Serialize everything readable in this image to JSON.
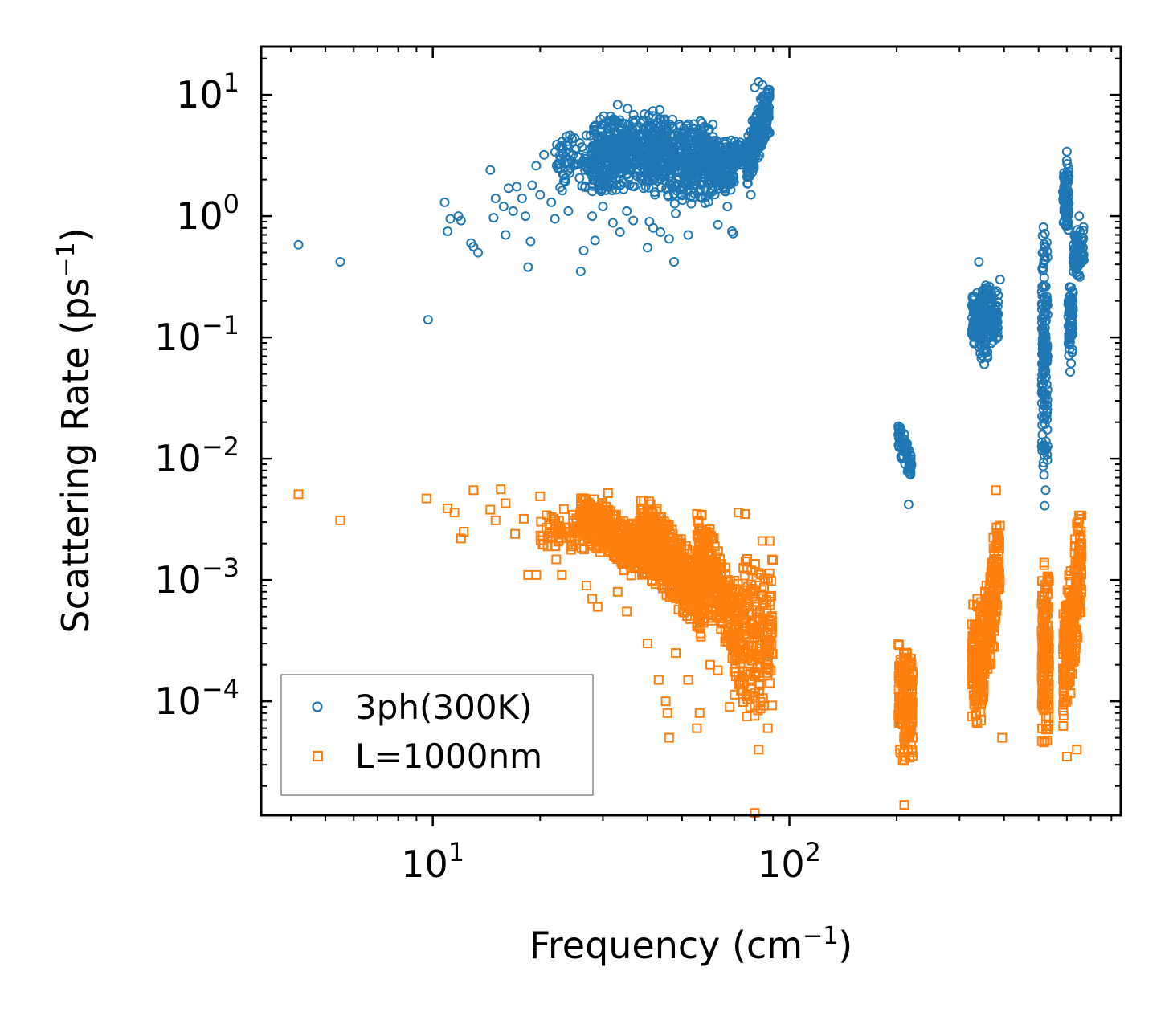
{
  "chart_data": {
    "type": "scatter",
    "xscale": "log",
    "yscale": "log",
    "xlim": [
      3.3,
      850
    ],
    "ylim": [
      1.15e-05,
      25
    ],
    "xlabel": {
      "main": "Frequency (cm",
      "sup": "−1",
      "close": ")"
    },
    "ylabel": {
      "main": "Scattering Rate (ps",
      "sup": "−1",
      "close": ")"
    },
    "x_ticks": [
      {
        "value": 10,
        "base": "10",
        "exp": "1"
      },
      {
        "value": 100,
        "base": "10",
        "exp": "2"
      }
    ],
    "y_ticks": [
      {
        "value": 10,
        "base": "10",
        "exp": "1"
      },
      {
        "value": 1,
        "base": "10",
        "exp": "0"
      },
      {
        "value": 0.1,
        "base": "10",
        "exp": "−1"
      },
      {
        "value": 0.01,
        "base": "10",
        "exp": "−2"
      },
      {
        "value": 0.001,
        "base": "10",
        "exp": "−3"
      },
      {
        "value": 0.0001,
        "base": "10",
        "exp": "−4"
      }
    ],
    "legend": {
      "position": "lower-left"
    },
    "series": [
      {
        "name": "3ph(300K)",
        "marker": "circle",
        "color": "#1f77b4",
        "points": [
          [
            4.2,
            0.58
          ],
          [
            5.5,
            0.42
          ],
          [
            9.7,
            0.14
          ],
          [
            10.8,
            1.3
          ],
          [
            11.0,
            0.75
          ],
          [
            11.2,
            0.95
          ],
          [
            11.8,
            1.0
          ],
          [
            12.0,
            0.92
          ],
          [
            12.8,
            0.6
          ],
          [
            13.0,
            0.56
          ],
          [
            13.4,
            0.5
          ],
          [
            14.5,
            2.4
          ],
          [
            14.8,
            0.97
          ],
          [
            15.0,
            1.4
          ],
          [
            15.8,
            1.2
          ],
          [
            16.0,
            0.7
          ],
          [
            16.3,
            1.7
          ],
          [
            16.8,
            1.1
          ],
          [
            17.2,
            1.75
          ],
          [
            17.8,
            1.4
          ],
          [
            18.2,
            1.0
          ],
          [
            18.5,
            0.38
          ],
          [
            18.8,
            0.62
          ],
          [
            19.0,
            1.8
          ],
          [
            19.5,
            2.6
          ],
          [
            20.0,
            1.5
          ],
          [
            20.5,
            3.2
          ],
          [
            21.5,
            1.3
          ],
          [
            22.0,
            0.95
          ],
          [
            23.0,
            3.8
          ],
          [
            24.0,
            1.1
          ],
          [
            25.0,
            4.4
          ],
          [
            26.0,
            0.35
          ],
          [
            26.5,
            0.52
          ],
          [
            27.0,
            2.5
          ],
          [
            28.0,
            1.0
          ],
          [
            28.5,
            0.63
          ],
          [
            30.0,
            1.2
          ],
          [
            31.0,
            2.2
          ],
          [
            32.0,
            0.88
          ],
          [
            33.0,
            8.3
          ],
          [
            33.5,
            0.74
          ],
          [
            35.0,
            1.1
          ],
          [
            36.5,
            0.92
          ],
          [
            38.0,
            2.9
          ],
          [
            40.0,
            0.55
          ],
          [
            40.5,
            0.9
          ],
          [
            41.5,
            0.8
          ],
          [
            42.0,
            1.5
          ],
          [
            43.5,
            0.74
          ],
          [
            46.0,
            0.65
          ],
          [
            47.5,
            0.42
          ],
          [
            48.0,
            1.05
          ],
          [
            52.0,
            0.7
          ],
          [
            54.0,
            5.2
          ],
          [
            55.0,
            4.2
          ],
          [
            60.0,
            3.3
          ],
          [
            63.0,
            0.85
          ],
          [
            67.0,
            1.2
          ],
          [
            69.0,
            0.75
          ],
          [
            69.5,
            0.72
          ],
          [
            72.0,
            3.9
          ],
          [
            78.0,
            1.5
          ],
          [
            80.0,
            11.5
          ],
          [
            82.0,
            12.8
          ],
          [
            84.0,
            12.1
          ],
          [
            87.0,
            11.0
          ],
          [
            216.0,
            0.0042
          ],
          [
            340.0,
            0.42
          ],
          [
            352.0,
            0.06
          ],
          [
            390.0,
            0.3
          ],
          [
            520.0,
            0.0041
          ],
          [
            523.0,
            0.0055
          ],
          [
            600.0,
            3.4
          ],
          [
            613.0,
            0.052
          ],
          [
            650.0,
            1.0
          ]
        ],
        "clusters": [
          {
            "x": [
              28,
              45
            ],
            "y": [
              1.5,
              8
            ],
            "n": 520,
            "trend": 0
          },
          {
            "x": [
              45,
              62
            ],
            "y": [
              1.2,
              6.5
            ],
            "n": 380,
            "trend": 0
          },
          {
            "x": [
              60,
              70
            ],
            "y": [
              1.5,
              4.5
            ],
            "n": 180,
            "trend": 0
          },
          {
            "x": [
              22,
              34
            ],
            "y": [
              1.5,
              5
            ],
            "n": 140,
            "trend": 0
          },
          {
            "x": [
              70,
              78
            ],
            "y": [
              2.3,
              4.8
            ],
            "n": 60,
            "trend": 0
          },
          {
            "x": [
              76,
              88
            ],
            "y": [
              1.6,
              11
            ],
            "n": 240,
            "trend": 1
          },
          {
            "x": [
              202,
              220
            ],
            "y": [
              0.006,
              0.02
            ],
            "n": 70,
            "trend": -1
          },
          {
            "x": [
              325,
              345
            ],
            "y": [
              0.07,
              0.25
            ],
            "n": 90,
            "trend": 0
          },
          {
            "x": [
              345,
              362
            ],
            "y": [
              0.055,
              0.35
            ],
            "n": 80,
            "trend": 0
          },
          {
            "x": [
              362,
              385
            ],
            "y": [
              0.08,
              0.28
            ],
            "n": 80,
            "trend": 0
          },
          {
            "x": [
              510,
              530
            ],
            "y": [
              0.0055,
              0.9
            ],
            "n": 160,
            "trend": 0
          },
          {
            "x": [
              585,
              608
            ],
            "y": [
              0.7,
              3.0
            ],
            "n": 90,
            "trend": 0
          },
          {
            "x": [
              605,
              625
            ],
            "y": [
              0.06,
              0.3
            ],
            "n": 70,
            "trend": 0
          },
          {
            "x": [
              625,
              670
            ],
            "y": [
              0.3,
              0.9
            ],
            "n": 80,
            "trend": 0
          }
        ]
      },
      {
        "name": "L=1000nm",
        "marker": "square",
        "color": "#ff7f0e",
        "points": [
          [
            4.2,
            0.0051
          ],
          [
            5.5,
            0.0031
          ],
          [
            9.6,
            0.0047
          ],
          [
            11.0,
            0.0039
          ],
          [
            11.5,
            0.0036
          ],
          [
            12.0,
            0.0022
          ],
          [
            12.2,
            0.0025
          ],
          [
            13.0,
            0.0055
          ],
          [
            14.5,
            0.0038
          ],
          [
            15.0,
            0.0031
          ],
          [
            15.5,
            0.0056
          ],
          [
            16.0,
            0.0043
          ],
          [
            17.0,
            0.0024
          ],
          [
            18.0,
            0.0032
          ],
          [
            18.5,
            0.0011
          ],
          [
            19.5,
            0.0011
          ],
          [
            20.0,
            0.0049
          ],
          [
            22.0,
            0.0019
          ],
          [
            23.0,
            0.0011
          ],
          [
            24.0,
            0.0025
          ],
          [
            27.0,
            0.0009
          ],
          [
            28.0,
            0.0007
          ],
          [
            29.0,
            0.0006
          ],
          [
            31.0,
            0.0052
          ],
          [
            33.0,
            0.0008
          ],
          [
            35.0,
            0.00055
          ],
          [
            40.0,
            0.0003
          ],
          [
            43.0,
            0.00015
          ],
          [
            45.0,
            0.0001
          ],
          [
            45.5,
            8e-05
          ],
          [
            46.0,
            5e-05
          ],
          [
            48.0,
            0.00025
          ],
          [
            52.0,
            0.00015
          ],
          [
            55.0,
            6e-05
          ],
          [
            56.0,
            8e-05
          ],
          [
            60.0,
            0.0002
          ],
          [
            63.0,
            0.00018
          ],
          [
            68.0,
            9e-05
          ],
          [
            72.0,
            0.0036
          ],
          [
            75.0,
            0.0035
          ],
          [
            80.0,
            1.2e-05
          ],
          [
            82.0,
            4e-05
          ],
          [
            84.0,
            0.0021
          ],
          [
            87.0,
            6e-05
          ],
          [
            88.0,
            0.0021
          ],
          [
            210.0,
            1.4e-05
          ],
          [
            215.0,
            4e-05
          ],
          [
            380.0,
            0.0055
          ],
          [
            395.0,
            5e-05
          ],
          [
            600.0,
            3.5e-05
          ],
          [
            640.0,
            4e-05
          ]
        ],
        "clusters": [
          {
            "x": [
              26,
              42
            ],
            "y": [
              0.0008,
              0.005
            ],
            "n": 380,
            "trend": -1
          },
          {
            "x": [
              38,
              58
            ],
            "y": [
              0.0003,
              0.0045
            ],
            "n": 520,
            "trend": -1
          },
          {
            "x": [
              55,
              72
            ],
            "y": [
              0.00015,
              0.0035
            ],
            "n": 300,
            "trend": -1
          },
          {
            "x": [
              20,
              30
            ],
            "y": [
              0.0014,
              0.0042
            ],
            "n": 90,
            "trend": 0
          },
          {
            "x": [
              70,
              90
            ],
            "y": [
              6e-05,
              0.002
            ],
            "n": 240,
            "trend": 0
          },
          {
            "x": [
              202,
              222
            ],
            "y": [
              3e-05,
              0.00035
            ],
            "n": 180,
            "trend": 0
          },
          {
            "x": [
              325,
              345
            ],
            "y": [
              6e-05,
              0.0008
            ],
            "n": 140,
            "trend": 0
          },
          {
            "x": [
              345,
              390
            ],
            "y": [
              6e-05,
              0.0028
            ],
            "n": 220,
            "trend": 1
          },
          {
            "x": [
              510,
              535
            ],
            "y": [
              4e-05,
              0.0017
            ],
            "n": 170,
            "trend": 0
          },
          {
            "x": [
              585,
              660
            ],
            "y": [
              4e-05,
              0.0034
            ],
            "n": 260,
            "trend": 1
          }
        ]
      }
    ]
  }
}
